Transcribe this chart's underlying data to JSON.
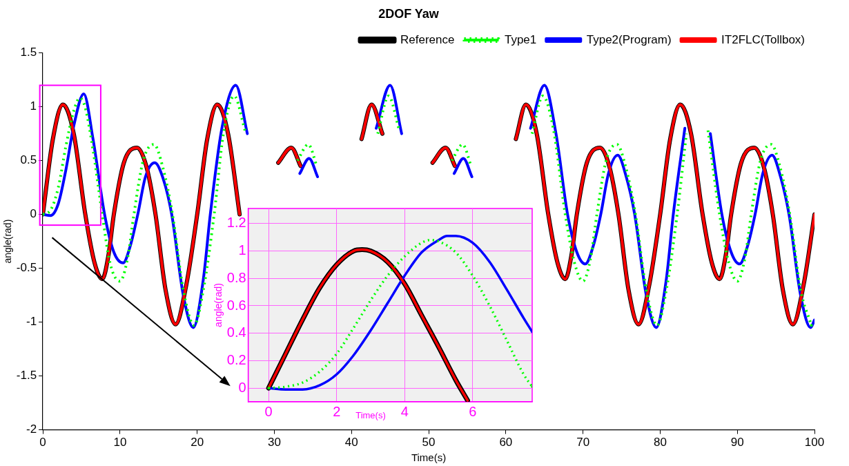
{
  "chart_data": [
    {
      "type": "line",
      "title": "2DOF Yaw",
      "xlabel": "Time(s)",
      "ylabel": "angle(rad)",
      "xlim": [
        0,
        100
      ],
      "ylim": [
        -2,
        1.5
      ],
      "xticks": [
        0,
        10,
        20,
        30,
        40,
        50,
        60,
        70,
        80,
        90,
        100
      ],
      "yticks": [
        -2,
        -1.5,
        -1,
        -0.5,
        0,
        0.5,
        1,
        1.5
      ],
      "grid": false,
      "legend": "top right",
      "series": [
        {
          "name": "Reference",
          "color": "#000000",
          "line_style": "solid",
          "x": [
            0,
            1.3,
            2.6,
            4,
            5.5,
            6.7,
            7.7,
            8.5,
            9.2,
            10.5,
            12.2,
            13.4,
            14.6,
            15.9,
            17.2,
            18.6,
            20,
            21.3,
            22.6,
            24,
            25.5,
            26.7,
            27.7,
            28.5,
            29.2,
            30.5,
            32.2,
            33.4,
            34.6,
            35.9,
            37.2,
            38.6,
            40,
            41.3,
            42.6,
            44,
            45.5,
            46.7,
            47.7,
            48.5,
            49.2,
            50.5,
            52.2,
            53.4,
            54.6,
            55.9,
            57.2,
            58.6,
            60,
            61.3,
            62.6,
            64,
            65.5,
            66.7,
            67.7,
            68.5,
            69.2,
            70.5,
            72.2,
            73.4,
            74.6,
            75.9,
            77.2,
            78.6,
            80,
            81.3,
            82.6,
            84,
            85.5,
            86.7,
            87.7,
            88.5,
            89.2,
            90.5,
            92.2,
            93.4,
            94.6,
            95.9,
            97.2,
            98.6,
            100
          ],
          "values": [
            0,
            0.7,
            1.02,
            0.75,
            0,
            -0.45,
            -0.6,
            -0.38,
            0,
            0.48,
            0.62,
            0.45,
            0,
            -0.7,
            -1.02,
            -0.65,
            0,
            0.7,
            1.02,
            0.75,
            0,
            null,
            null,
            null,
            null,
            0.48,
            0.62,
            0.45,
            null,
            null,
            null,
            null,
            null,
            0.7,
            1.02,
            0.75,
            null,
            null,
            null,
            null,
            null,
            0.48,
            0.62,
            0.45,
            null,
            null,
            null,
            null,
            null,
            0.7,
            1.02,
            0.75,
            0,
            -0.45,
            -0.6,
            -0.38,
            0,
            0.48,
            0.62,
            0.45,
            0,
            -0.7,
            -1.02,
            -0.65,
            0,
            0.7,
            1.02,
            0.75,
            0,
            -0.45,
            -0.6,
            -0.38,
            0,
            0.48,
            0.62,
            0.45,
            0,
            -0.7,
            -1.02,
            -0.65,
            0
          ]
        },
        {
          "name": "Type1",
          "color": "#00ff00",
          "line_style": "dotted",
          "x": [
            0,
            1,
            2,
            3,
            4,
            4.8,
            5.5,
            6.5,
            7.6,
            8.7,
            10,
            11,
            11.8,
            13,
            14.4,
            15.5,
            16.8,
            18.2,
            19.6,
            20.8,
            22.2,
            23.4,
            24.8,
            26.2,
            27.7,
            28.9,
            30,
            31,
            31.8,
            33,
            34.4,
            35.5,
            36.8,
            38.2,
            39.6,
            40.8,
            42.2,
            43.4,
            44.8,
            46.2,
            47.7,
            48.9,
            50,
            51,
            51.8,
            53,
            54.4,
            55.5,
            56.8,
            58.2,
            59.6,
            60.8,
            62.2,
            63.4,
            64.8,
            66.2,
            67.7,
            68.9,
            70,
            71,
            71.8,
            73,
            74.4,
            75.5,
            76.8,
            78.2,
            79.6,
            80.8,
            82.2,
            83.4,
            84.8,
            86.2,
            87.7,
            88.9,
            90,
            91,
            91.8,
            93,
            94.4,
            95.5,
            96.8,
            98.2,
            99.6
          ],
          "values": [
            0,
            0.04,
            0.25,
            0.64,
            0.96,
            1.08,
            0.99,
            0.6,
            0.05,
            -0.45,
            -0.62,
            -0.4,
            0,
            0.5,
            0.65,
            0.45,
            0,
            -0.7,
            -1.03,
            -0.7,
            0,
            0.75,
            1.1,
            0.78,
            null,
            null,
            null,
            null,
            null,
            0.5,
            0.65,
            0.45,
            null,
            null,
            null,
            null,
            null,
            0.75,
            1.1,
            0.78,
            null,
            null,
            null,
            null,
            null,
            0.5,
            0.65,
            0.45,
            null,
            null,
            null,
            null,
            null,
            0.75,
            1.1,
            0.78,
            0,
            -0.45,
            -0.62,
            -0.4,
            0,
            0.5,
            0.65,
            0.45,
            0,
            -0.7,
            -1.03,
            -0.7,
            0,
            0.75,
            null,
            0.78,
            0,
            -0.45,
            -0.62,
            -0.4,
            0,
            0.5,
            0.65,
            0.45,
            0,
            -0.7,
            -1.03
          ]
        },
        {
          "name": "Type2(Program)",
          "color": "#0000ff",
          "line_style": "solid",
          "x": [
            0,
            1,
            2,
            3,
            4,
            5.3,
            6.5,
            8,
            9.2,
            10.4,
            11.3,
            12.3,
            13.3,
            14.5,
            15.6,
            16.7,
            18.2,
            19.5,
            20.8,
            21.7,
            23.2,
            25,
            26.5,
            28,
            29.2,
            30.3,
            31.3,
            32.3,
            33.3,
            34.5,
            35.6,
            36.7,
            38.2,
            39.5,
            40.8,
            41.7,
            43.2,
            45,
            46.5,
            48,
            49.2,
            50.3,
            51.3,
            52.3,
            53.3,
            54.5,
            55.6,
            56.7,
            58.2,
            59.5,
            60.8,
            61.7,
            63.2,
            65,
            66.5,
            68,
            69.2,
            70.3,
            71.3,
            72.3,
            73.3,
            74.5,
            75.6,
            76.7,
            78.2,
            79.5,
            80.8,
            81.7,
            83.2,
            85,
            86.5,
            88,
            89.2,
            90.3,
            91.3,
            92.3,
            93.3,
            94.5,
            95.6,
            96.7,
            98.2,
            99.5,
            100
          ],
          "values": [
            0,
            -0.01,
            0.1,
            0.42,
            0.82,
            1.12,
            0.7,
            0,
            -0.35,
            -0.45,
            -0.3,
            0,
            0.35,
            0.48,
            0.33,
            0,
            -0.75,
            -1.05,
            -0.6,
            0,
            0.8,
            1.2,
            0.75,
            null,
            null,
            null,
            null,
            null,
            0.38,
            0.52,
            0.35,
            null,
            null,
            null,
            null,
            null,
            0.8,
            1.2,
            0.75,
            null,
            null,
            null,
            null,
            null,
            0.38,
            0.52,
            0.35,
            null,
            null,
            null,
            null,
            null,
            0.8,
            1.2,
            0.75,
            0,
            -0.35,
            -0.46,
            -0.3,
            0,
            0.38,
            0.55,
            0.35,
            0,
            -0.75,
            -1.05,
            -0.6,
            0,
            0.8,
            null,
            0.75,
            0,
            -0.35,
            -0.46,
            -0.3,
            0,
            0.38,
            0.55,
            0.35,
            0,
            -0.75,
            -1.05,
            -0.98
          ]
        },
        {
          "name": "IT2FLC(Tollbox)",
          "color": "#ff0000",
          "line_style": "solid",
          "x": [
            0,
            1.3,
            2.6,
            4,
            5.5,
            6.7,
            7.7,
            8.5,
            9.2,
            10.5,
            12.2,
            13.4,
            14.6,
            15.9,
            17.2,
            18.6,
            20,
            21.3,
            22.6,
            24,
            25.5,
            26.7,
            27.7,
            28.5,
            29.2,
            30.5,
            32.2,
            33.4,
            34.6,
            35.9,
            37.2,
            38.6,
            40,
            41.3,
            42.6,
            44,
            45.5,
            46.7,
            47.7,
            48.5,
            49.2,
            50.5,
            52.2,
            53.4,
            54.6,
            55.9,
            57.2,
            58.6,
            60,
            61.3,
            62.6,
            64,
            65.5,
            66.7,
            67.7,
            68.5,
            69.2,
            70.5,
            72.2,
            73.4,
            74.6,
            75.9,
            77.2,
            78.6,
            80,
            81.3,
            82.6,
            84,
            85.5,
            86.7,
            87.7,
            88.5,
            89.2,
            90.5,
            92.2,
            93.4,
            94.6,
            95.9,
            97.2,
            98.6,
            100
          ],
          "values": [
            0,
            0.7,
            1.02,
            0.75,
            0,
            -0.45,
            -0.6,
            -0.38,
            0,
            0.48,
            0.62,
            0.45,
            0,
            -0.7,
            -1.02,
            -0.65,
            0,
            0.7,
            1.02,
            0.75,
            0,
            null,
            null,
            null,
            null,
            0.48,
            0.62,
            0.45,
            null,
            null,
            null,
            null,
            null,
            0.7,
            1.02,
            0.75,
            null,
            null,
            null,
            null,
            null,
            0.48,
            0.62,
            0.45,
            null,
            null,
            null,
            null,
            null,
            0.7,
            1.02,
            0.75,
            0,
            -0.45,
            -0.6,
            -0.38,
            0,
            0.48,
            0.62,
            0.45,
            0,
            -0.7,
            -1.02,
            -0.65,
            0,
            0.7,
            1.02,
            0.75,
            0,
            -0.45,
            -0.6,
            -0.38,
            0,
            0.48,
            0.62,
            0.45,
            0,
            -0.7,
            -1.02,
            -0.65,
            0
          ]
        }
      ]
    },
    {
      "type": "line",
      "xlabel": "Time(s)",
      "ylabel": "angle(rad)",
      "xlim": [
        -0.6,
        7.75
      ],
      "ylim": [
        -0.1,
        1.31
      ],
      "xticks": [
        0,
        2,
        4,
        6
      ],
      "yticks": [
        0,
        0.2,
        0.4,
        0.6,
        0.8,
        1,
        1.2
      ],
      "grid": true,
      "series": [
        {
          "color": "#000000",
          "line_style": "solid",
          "x": [
            0,
            0.5,
            1,
            1.5,
            2,
            2.5,
            2.75,
            3,
            3.5,
            4,
            4.5,
            5,
            5.5,
            5.85
          ],
          "values": [
            0,
            0.25,
            0.5,
            0.73,
            0.9,
            1,
            1.01,
            1,
            0.92,
            0.76,
            0.53,
            0.3,
            0.06,
            -0.09
          ]
        },
        {
          "color": "#00ff00",
          "line_style": "dotted",
          "x": [
            0,
            0.5,
            1,
            1.5,
            2,
            2.5,
            3,
            3.5,
            4,
            4.5,
            4.75,
            5,
            5.5,
            6,
            6.5,
            7,
            7.5,
            7.75
          ],
          "values": [
            0,
            0.01,
            0.04,
            0.12,
            0.25,
            0.44,
            0.64,
            0.82,
            0.96,
            1.06,
            1.08,
            1.07,
            0.99,
            0.82,
            0.6,
            0.35,
            0.1,
            0.01
          ]
        },
        {
          "color": "#0000ff",
          "line_style": "solid",
          "x": [
            0,
            0.5,
            1,
            1.5,
            2,
            2.5,
            3,
            3.5,
            4,
            4.5,
            5,
            5.25,
            5.5,
            6,
            6.5,
            7,
            7.5,
            7.75
          ],
          "values": [
            0,
            -0.01,
            -0.01,
            0.02,
            0.1,
            0.24,
            0.42,
            0.62,
            0.82,
            0.99,
            1.08,
            1.11,
            1.11,
            1.06,
            0.92,
            0.72,
            0.51,
            0.41
          ]
        },
        {
          "color": "#ff0000",
          "line_style": "solid",
          "x": [
            0,
            0.5,
            1,
            1.5,
            2,
            2.5,
            2.75,
            3,
            3.5,
            4,
            4.5,
            5,
            5.5,
            5.85
          ],
          "values": [
            0,
            0.25,
            0.5,
            0.73,
            0.9,
            1,
            1.01,
            1,
            0.92,
            0.76,
            0.53,
            0.3,
            0.06,
            -0.09
          ]
        }
      ]
    }
  ]
}
